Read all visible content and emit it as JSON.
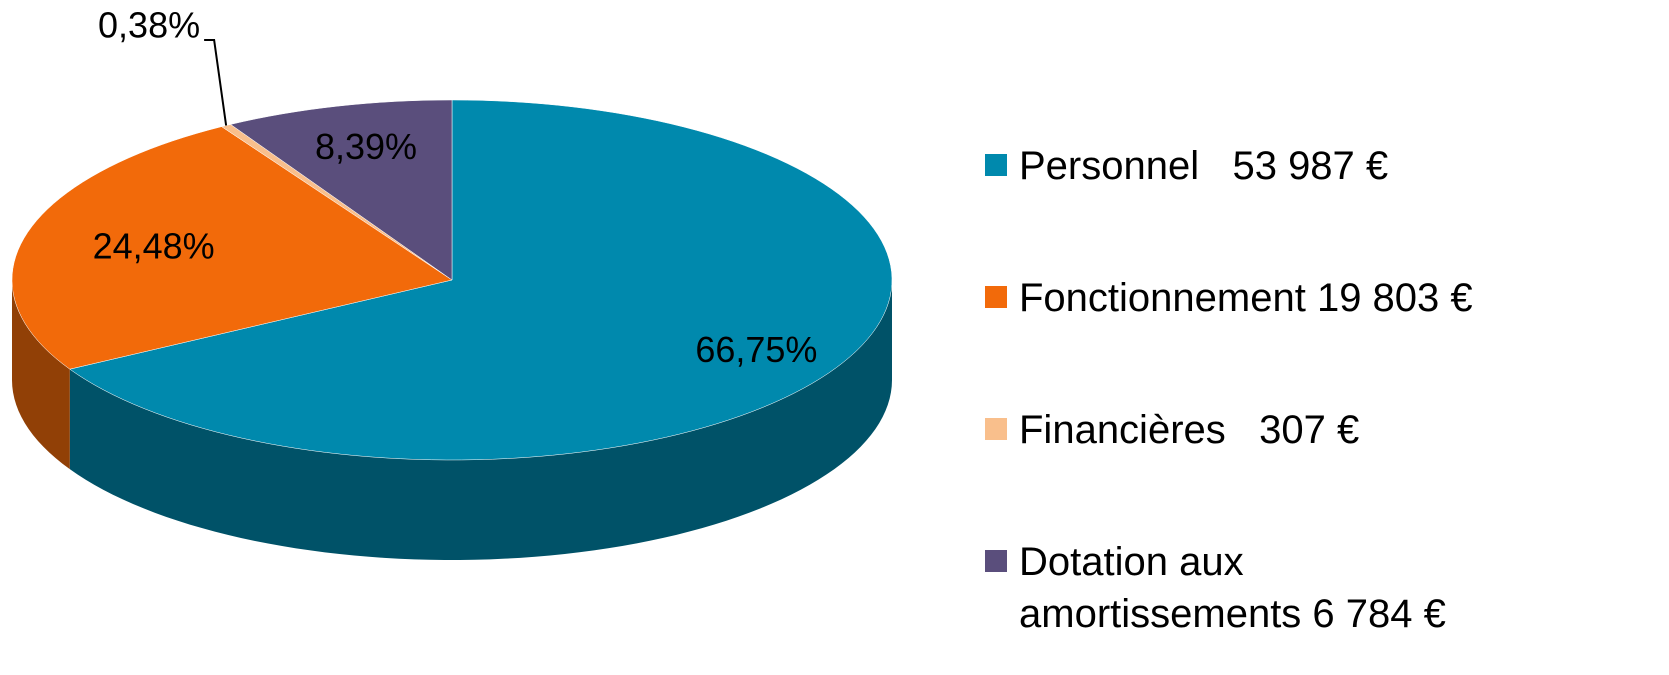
{
  "chart_data": {
    "type": "pie",
    "categories": [
      "Personnel   53 987 €",
      "Fonctionnement 19 803 €",
      "Financières   307 €",
      "Dotation aux amortissements 6 784 €"
    ],
    "values": [
      66.75,
      24.48,
      0.38,
      8.39
    ],
    "value_labels": [
      "66,75%",
      "24,48%",
      "0,38%",
      "8,39%"
    ],
    "colors": [
      "#0089ad",
      "#f26a0a",
      "#f9bf8c",
      "#5a4e7c"
    ],
    "legend": "right"
  }
}
